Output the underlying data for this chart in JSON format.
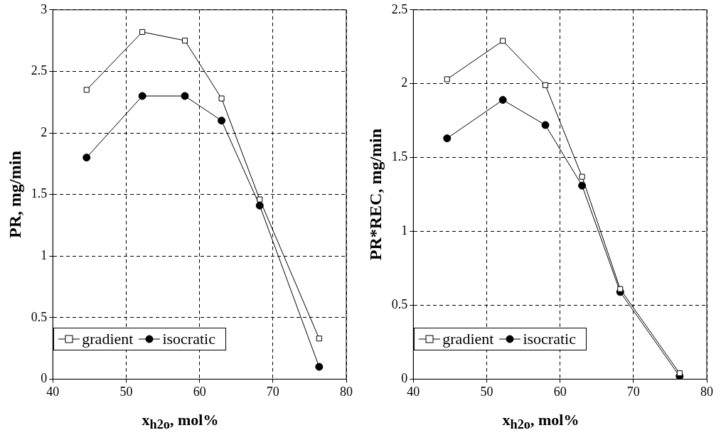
{
  "chart_data": [
    {
      "type": "line",
      "xlabel": "x$_{h2o}$, mol%",
      "ylabel": "PR, mg/min",
      "xlim": [
        40,
        80
      ],
      "xticks": [
        40,
        50,
        60,
        70,
        80
      ],
      "ylim": [
        0,
        3
      ],
      "yticks": [
        0,
        0.5,
        1,
        1.5,
        2,
        2.5,
        3
      ],
      "grid": true,
      "legend": "bottom left",
      "line_style": "solid",
      "x": [
        44.6,
        52.2,
        58,
        63,
        68.2,
        76.3
      ],
      "series": [
        {
          "name": "gradient",
          "color": "#000000",
          "marker": "square",
          "values": [
            2.35,
            2.82,
            2.75,
            2.28,
            1.46,
            0.33
          ]
        },
        {
          "name": "isocratic",
          "color": "#000000",
          "marker": "circle",
          "values": [
            1.8,
            2.3,
            2.3,
            2.1,
            1.41,
            0.1
          ]
        }
      ]
    },
    {
      "type": "line",
      "xlabel": "x$_{h2o}$, mol%",
      "ylabel": "PR*REC, mg/min",
      "xlim": [
        40,
        80
      ],
      "xticks": [
        40,
        50,
        60,
        70,
        80
      ],
      "ylim": [
        0,
        2.5
      ],
      "yticks": [
        0,
        0.5,
        1,
        1.5,
        2,
        2.5
      ],
      "grid": true,
      "legend": "bottom left",
      "line_style": "solid",
      "x": [
        44.6,
        52.2,
        58,
        63,
        68.2,
        76.3
      ],
      "series": [
        {
          "name": "gradient",
          "color": "#000000",
          "marker": "square",
          "values": [
            2.03,
            2.29,
            1.99,
            1.37,
            0.61,
            0.04
          ]
        },
        {
          "name": "isocratic",
          "color": "#000000",
          "marker": "circle",
          "values": [
            1.63,
            1.89,
            1.72,
            1.31,
            0.59,
            0.02
          ]
        }
      ]
    }
  ]
}
